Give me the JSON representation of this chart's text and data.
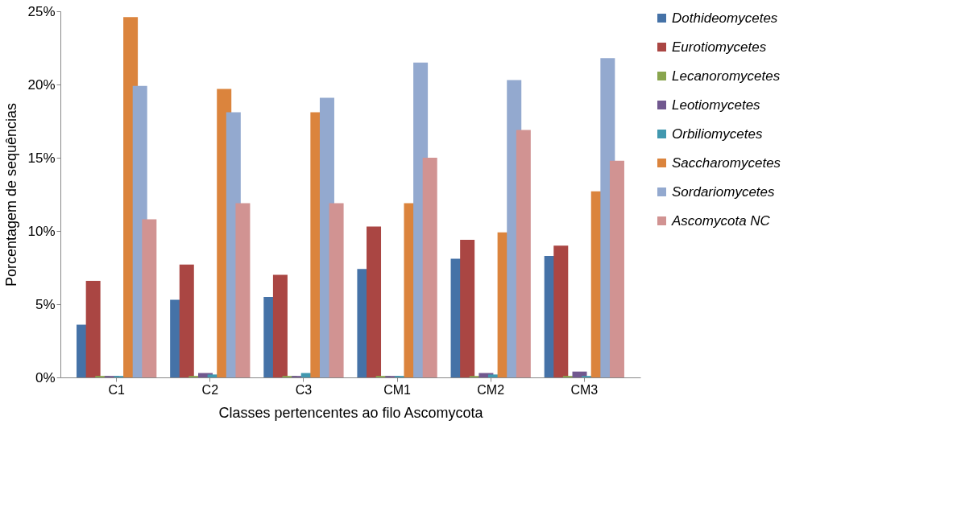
{
  "chart_data": {
    "type": "bar",
    "xlabel": "Classes pertencentes ao filo Ascomycota",
    "ylabel": "Porcentagem de sequências",
    "categories": [
      "C1",
      "C2",
      "C3",
      "CM1",
      "CM2",
      "CM3"
    ],
    "series": [
      {
        "name": "Dothideomycetes",
        "color": "#4572a7",
        "values": [
          3.6,
          5.3,
          5.5,
          7.4,
          8.1,
          8.3
        ]
      },
      {
        "name": "Eurotiomycetes",
        "color": "#aa4643",
        "values": [
          6.6,
          7.7,
          7.0,
          10.3,
          9.4,
          9.0
        ]
      },
      {
        "name": "Lecanoromycetes",
        "color": "#89a54e",
        "values": [
          0.1,
          0.1,
          0.1,
          0.1,
          0.1,
          0.1
        ]
      },
      {
        "name": "Leotiomycetes",
        "color": "#71588f",
        "values": [
          0.1,
          0.3,
          0.1,
          0.1,
          0.3,
          0.4
        ]
      },
      {
        "name": "Orbiliomycetes",
        "color": "#4198af",
        "values": [
          0.1,
          0.2,
          0.3,
          0.1,
          0.2,
          0.1
        ]
      },
      {
        "name": "Saccharomycetes",
        "color": "#db843d",
        "values": [
          24.6,
          19.7,
          18.1,
          11.9,
          9.9,
          12.7
        ]
      },
      {
        "name": "Sordariomycetes",
        "color": "#93a9cf",
        "values": [
          19.9,
          18.1,
          19.1,
          21.5,
          20.3,
          21.8
        ]
      },
      {
        "name": "Ascomycota NC",
        "color": "#d19392",
        "values": [
          10.8,
          11.9,
          11.9,
          15.0,
          16.9,
          14.8
        ]
      }
    ],
    "ylim": [
      0,
      25
    ],
    "yticks": [
      {
        "value": 0,
        "label": "0%"
      },
      {
        "value": 5,
        "label": "5%"
      },
      {
        "value": 10,
        "label": "10%"
      },
      {
        "value": 15,
        "label": "15%"
      },
      {
        "value": 20,
        "label": "20%"
      },
      {
        "value": 25,
        "label": "25%"
      }
    ],
    "grid": false,
    "legend": "right"
  }
}
